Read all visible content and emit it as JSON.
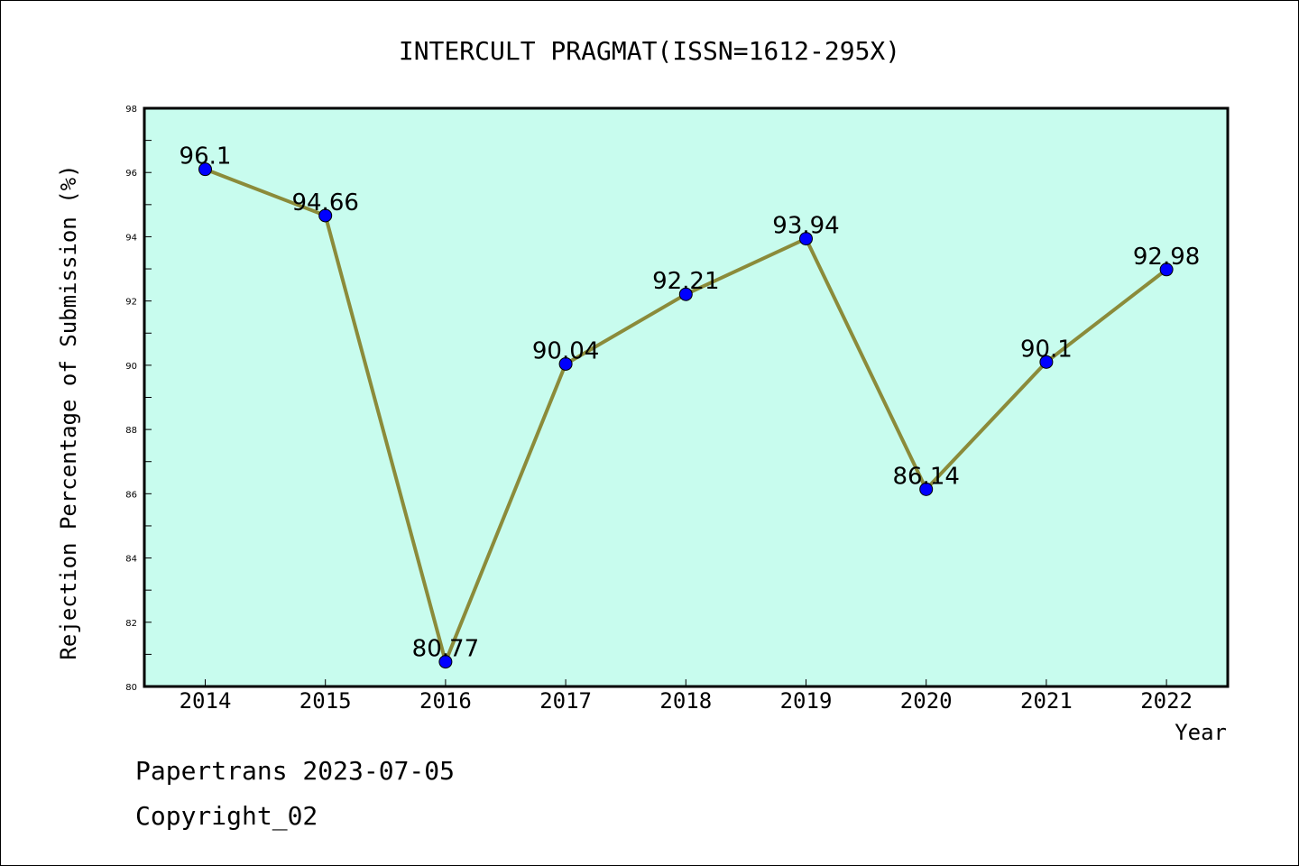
{
  "chart_data": {
    "type": "line",
    "title": "INTERCULT PRAGMAT(ISSN=1612-295X)",
    "xlabel": "Year",
    "ylabel": "Rejection Percentage of Submission (%)",
    "categories": [
      "2014",
      "2015",
      "2016",
      "2017",
      "2018",
      "2019",
      "2020",
      "2021",
      "2022"
    ],
    "series": [
      {
        "values": [
          96.1,
          94.66,
          80.77,
          90.04,
          92.21,
          93.94,
          86.14,
          90.1,
          92.98
        ]
      }
    ],
    "data_labels": [
      "96.1",
      "94.66",
      "80.77",
      "90.04",
      "92.21",
      "93.94",
      "86.14",
      "90.1",
      "92.98"
    ],
    "ylim": [
      80,
      98
    ],
    "yticks": [
      80,
      82,
      84,
      86,
      88,
      90,
      92,
      94,
      96,
      98
    ],
    "grid": false,
    "legend": "none",
    "colors": {
      "plot_background": "#c8fcee",
      "line": "#8b8b3a",
      "marker": "#0000ff"
    }
  },
  "footer": {
    "line1": "Papertrans 2023-07-05",
    "line2": "Copyright_02"
  }
}
